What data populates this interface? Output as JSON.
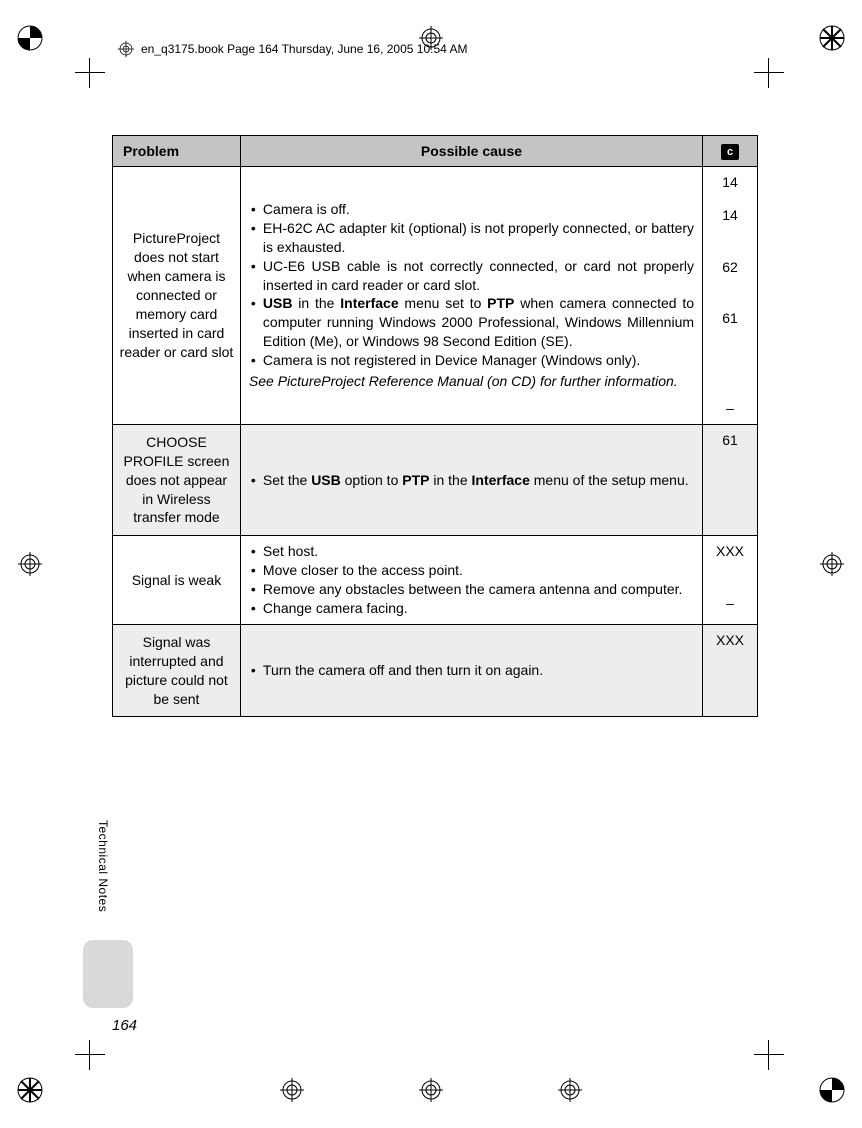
{
  "header": {
    "text": "en_q3175.book  Page 164  Thursday, June 16, 2005  10:54 AM"
  },
  "table": {
    "headers": {
      "c1": "Problem",
      "c2": "Possible cause",
      "c3": "c"
    },
    "rows": [
      {
        "problem": "PictureProject does not start when camera is connected or memory card inserted in card reader or card slot",
        "cause_items": [
          "Camera is off.",
          "EH-62C AC adapter kit (optional) is not properly connected, or battery is exhausted.",
          "UC-E6 USB cable is not correctly connected, or card not properly inserted in card reader or card slot.",
          "<b>USB</b> in the <b>Interface</b> menu set to <b>PTP</b> when camera connected to computer running Windows 2000 Professional, Windows Millennium Edition (Me), or Windows 98 Second Edition (SE).",
          "Camera is not registered in Device Manager (Windows only)."
        ],
        "cause_note": "See PictureProject Reference Manual (on CD) for further information.",
        "refs": [
          "14",
          "14",
          "",
          "62",
          "",
          "61",
          "",
          "",
          "",
          "–"
        ]
      },
      {
        "problem": "CHOOSE PROFILE screen does not appear in Wireless transfer mode",
        "cause_items": [
          "Set the <b>USB</b> option to <b>PTP</b> in the <b>Interface</b> menu of the setup menu."
        ],
        "refs": [
          "61"
        ]
      },
      {
        "problem": "Signal is weak",
        "cause_items": [
          "Set host.",
          "Move closer to the access point.",
          "Remove any obstacles between the camera antenna and computer.",
          "Change camera facing."
        ],
        "refs": [
          "XXX",
          "",
          "–"
        ]
      },
      {
        "problem": "Signal was interrupted and picture could not be sent",
        "cause_items": [
          "Turn the camera off and then turn it on again."
        ],
        "refs": [
          "XXX"
        ]
      }
    ]
  },
  "side_label": "Technical Notes",
  "page_number": "164"
}
